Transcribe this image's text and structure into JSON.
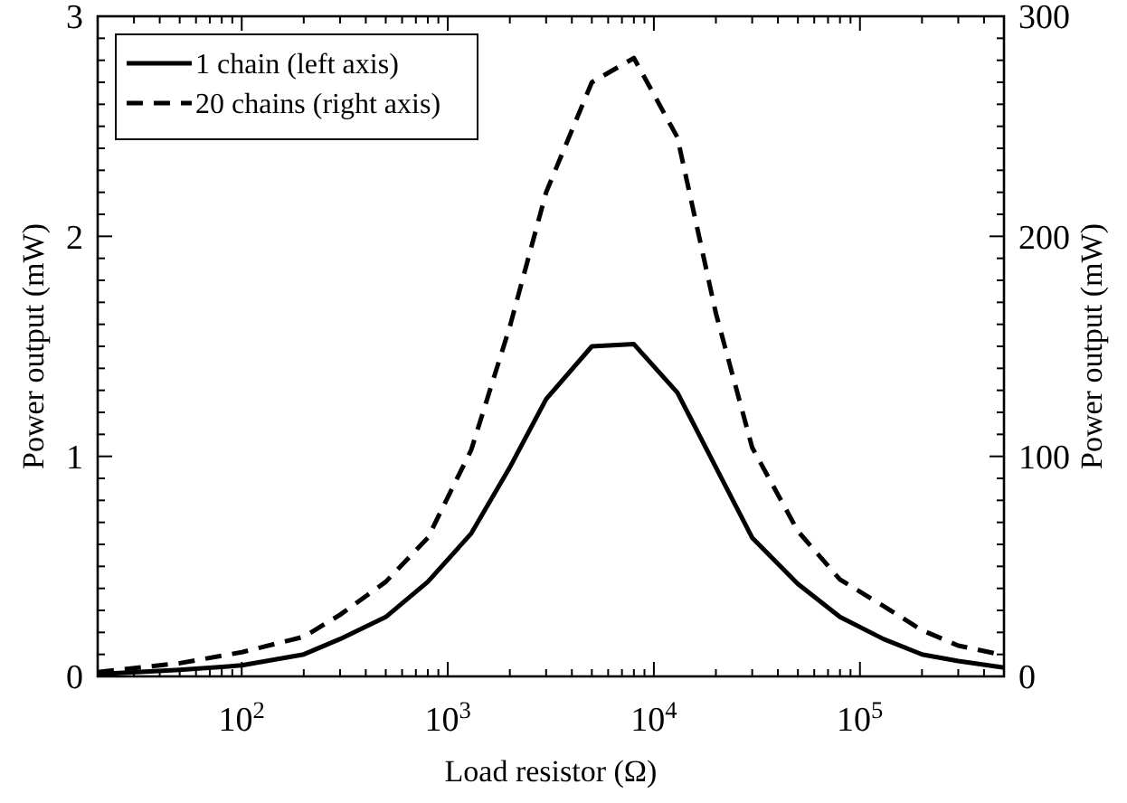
{
  "chart_data": {
    "type": "line",
    "xlabel": "Load resistor (Ω)",
    "ylabel": "Power output (mW)",
    "y2label": "Power output (mW)",
    "x": [
      20,
      50,
      100,
      200,
      300,
      500,
      800,
      1300,
      2000,
      3000,
      5000,
      8000,
      13000,
      20000,
      30000,
      50000,
      80000,
      130000,
      200000,
      300000,
      500000
    ],
    "series": [
      {
        "name": "1 chain (left axis)",
        "color": "#000000",
        "line_style": "solid",
        "values": [
          0.01,
          0.03,
          0.05,
          0.1,
          0.17,
          0.27,
          0.43,
          0.65,
          0.95,
          1.26,
          1.5,
          1.51,
          1.29,
          0.95,
          0.63,
          0.42,
          0.27,
          0.17,
          0.1,
          0.07,
          0.04
        ]
      },
      {
        "name": "20 chains (right axis)",
        "color": "#000000",
        "line_style": "dashed",
        "axis": "y2",
        "values": [
          2,
          6,
          11,
          18,
          28,
          43,
          63,
          103,
          159,
          220,
          270,
          281,
          245,
          165,
          104,
          66,
          44,
          32,
          21,
          14,
          9.6
        ]
      }
    ],
    "log": "x",
    "xlim": [
      20,
      500000
    ],
    "xticks": [
      {
        "value": 100,
        "label": "10$^{2}$"
      },
      {
        "value": 1000,
        "label": "10$^{3}$"
      },
      {
        "value": 10000,
        "label": "10$^{4}$"
      },
      {
        "value": 100000,
        "label": "10$^{5}$"
      }
    ],
    "ylim": [
      0,
      3
    ],
    "yticks": [
      0,
      1,
      2,
      3
    ],
    "y2lim": [
      0,
      300
    ],
    "y2ticks": [
      0,
      100,
      200,
      300
    ],
    "legend": "top left",
    "grid": false
  }
}
